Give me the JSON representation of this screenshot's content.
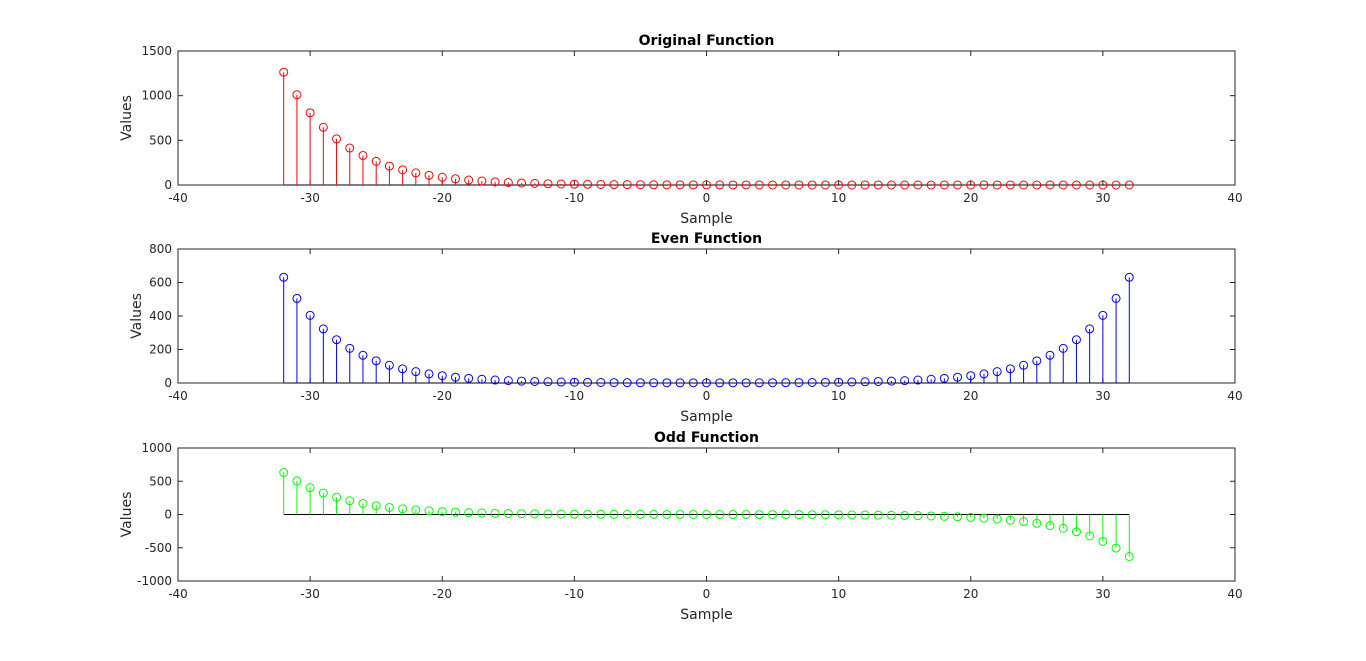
{
  "chart_data": [
    {
      "type": "stem",
      "title": "Original Function",
      "xlabel": "Sample",
      "ylabel": "Values",
      "xlim": [
        -40,
        40
      ],
      "ylim": [
        0,
        1500
      ],
      "xticks": [
        "-40",
        "-30",
        "-20",
        "-10",
        "0",
        "10",
        "20",
        "30",
        "40"
      ],
      "yticks": [
        "0",
        "500",
        "1000",
        "1500"
      ],
      "color": "#ff0000",
      "x": [
        -32,
        -31,
        -30,
        -29,
        -28,
        -27,
        -26,
        -25,
        -24,
        -23,
        -22,
        -21,
        -20,
        -19,
        -18,
        -17,
        -16,
        -15,
        -14,
        -13,
        -12,
        -11,
        -10,
        -9,
        -8,
        -7,
        -6,
        -5,
        -4,
        -3,
        -2,
        -1,
        0,
        1,
        2,
        3,
        4,
        5,
        6,
        7,
        8,
        9,
        10,
        11,
        12,
        13,
        14,
        15,
        16,
        17,
        18,
        19,
        20,
        21,
        22,
        23,
        24,
        25,
        26,
        27,
        28,
        29,
        30,
        31,
        32
      ],
      "values": [
        1262.2,
        1009.7,
        807.8,
        646.2,
        517.0,
        413.6,
        330.9,
        264.7,
        211.8,
        169.4,
        135.5,
        108.4,
        86.7,
        69.4,
        55.5,
        44.4,
        35.5,
        28.4,
        22.7,
        18.2,
        14.6,
        11.6,
        9.3,
        7.5,
        6.0,
        4.8,
        3.8,
        3.1,
        2.4,
        2.0,
        1.6,
        1.3,
        1.0,
        0.8,
        0.64,
        0.51,
        0.41,
        0.33,
        0.26,
        0.21,
        0.17,
        0.13,
        0.11,
        0.09,
        0.07,
        0.05,
        0.04,
        0.04,
        0.03,
        0.02,
        0.02,
        0.01,
        0.01,
        0.01,
        0.01,
        0.0,
        0.0,
        0.0,
        0.0,
        0.0,
        0.0,
        0.0,
        0.0,
        0.0,
        0.0
      ]
    },
    {
      "type": "stem",
      "title": "Even Function",
      "xlabel": "Sample",
      "ylabel": "Values",
      "xlim": [
        -40,
        40
      ],
      "ylim": [
        0,
        800
      ],
      "xticks": [
        "-40",
        "-30",
        "-20",
        "-10",
        "0",
        "10",
        "20",
        "30",
        "40"
      ],
      "yticks": [
        "0",
        "200",
        "400",
        "600",
        "800"
      ],
      "color": "#0000ff",
      "x": [
        -32,
        -31,
        -30,
        -29,
        -28,
        -27,
        -26,
        -25,
        -24,
        -23,
        -22,
        -21,
        -20,
        -19,
        -18,
        -17,
        -16,
        -15,
        -14,
        -13,
        -12,
        -11,
        -10,
        -9,
        -8,
        -7,
        -6,
        -5,
        -4,
        -3,
        -2,
        -1,
        0,
        1,
        2,
        3,
        4,
        5,
        6,
        7,
        8,
        9,
        10,
        11,
        12,
        13,
        14,
        15,
        16,
        17,
        18,
        19,
        20,
        21,
        22,
        23,
        24,
        25,
        26,
        27,
        28,
        29,
        30,
        31,
        32
      ],
      "values": [
        631.1,
        504.9,
        403.9,
        323.1,
        258.5,
        206.8,
        165.4,
        132.4,
        105.9,
        84.7,
        67.8,
        54.2,
        43.4,
        34.7,
        27.8,
        22.2,
        17.8,
        14.2,
        11.4,
        9.1,
        7.3,
        5.8,
        4.7,
        3.8,
        3.0,
        2.4,
        2.0,
        1.6,
        1.3,
        1.1,
        1.0,
        1.0,
        1.0,
        1.0,
        1.0,
        1.1,
        1.3,
        1.6,
        2.0,
        2.4,
        3.0,
        3.8,
        4.7,
        5.8,
        7.3,
        9.1,
        11.4,
        14.2,
        17.8,
        22.2,
        27.8,
        34.7,
        43.4,
        54.2,
        67.8,
        84.7,
        105.9,
        132.4,
        165.4,
        206.8,
        258.5,
        323.1,
        403.9,
        504.9,
        631.1
      ]
    },
    {
      "type": "stem",
      "title": "Odd Function",
      "xlabel": "Sample",
      "ylabel": "Values",
      "xlim": [
        -40,
        40
      ],
      "ylim": [
        -1000,
        1000
      ],
      "xticks": [
        "-40",
        "-30",
        "-20",
        "-10",
        "0",
        "10",
        "20",
        "30",
        "40"
      ],
      "yticks": [
        "-1000",
        "-500",
        "0",
        "500",
        "1000"
      ],
      "color": "#00ff00",
      "x": [
        -32,
        -31,
        -30,
        -29,
        -28,
        -27,
        -26,
        -25,
        -24,
        -23,
        -22,
        -21,
        -20,
        -19,
        -18,
        -17,
        -16,
        -15,
        -14,
        -13,
        -12,
        -11,
        -10,
        -9,
        -8,
        -7,
        -6,
        -5,
        -4,
        -3,
        -2,
        -1,
        0,
        1,
        2,
        3,
        4,
        5,
        6,
        7,
        8,
        9,
        10,
        11,
        12,
        13,
        14,
        15,
        16,
        17,
        18,
        19,
        20,
        21,
        22,
        23,
        24,
        25,
        26,
        27,
        28,
        29,
        30,
        31,
        32
      ],
      "values": [
        631.1,
        504.9,
        403.9,
        323.1,
        258.5,
        206.8,
        165.4,
        132.4,
        105.9,
        84.7,
        67.8,
        54.2,
        43.4,
        34.7,
        27.8,
        22.2,
        17.8,
        14.2,
        11.4,
        9.1,
        7.3,
        5.8,
        4.7,
        3.8,
        3.0,
        2.4,
        1.8,
        1.5,
        1.2,
        0.8,
        0.6,
        0.3,
        0.0,
        -0.3,
        -0.6,
        -0.8,
        -1.2,
        -1.5,
        -1.8,
        -2.4,
        -3.0,
        -3.8,
        -4.7,
        -5.8,
        -7.3,
        -9.1,
        -11.4,
        -14.2,
        -17.8,
        -22.2,
        -27.8,
        -34.7,
        -43.4,
        -54.2,
        -67.8,
        -84.7,
        -105.9,
        -132.4,
        -165.4,
        -206.8,
        -258.5,
        -323.1,
        -403.9,
        -504.9,
        -631.1
      ]
    }
  ]
}
